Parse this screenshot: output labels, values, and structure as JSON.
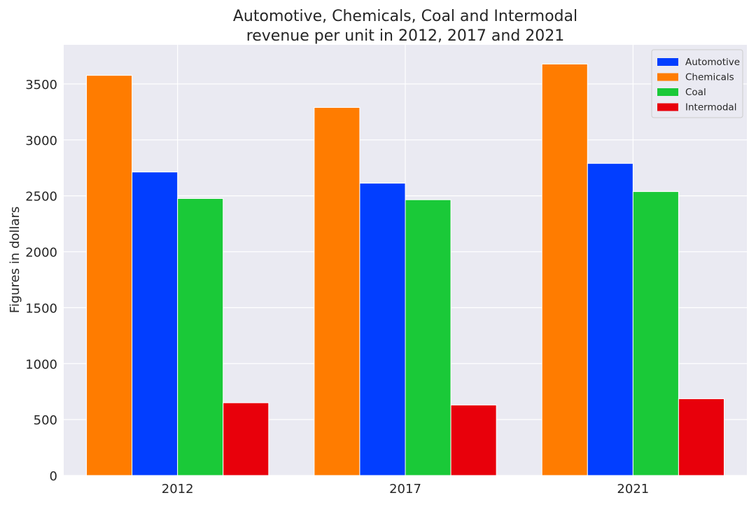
{
  "chart_data": {
    "type": "bar",
    "title_lines": [
      "Automotive, Chemicals, Coal and Intermodal",
      "revenue per unit in 2012, 2017 and 2021"
    ],
    "xlabel": "",
    "ylabel": "Figures in dollars",
    "categories": [
      "2012",
      "2017",
      "2021"
    ],
    "ylim": [
      0,
      3850
    ],
    "yticks": [
      0,
      500,
      1000,
      1500,
      2000,
      2500,
      3000,
      3500
    ],
    "grid": true,
    "legend_position": "top-right",
    "series": [
      {
        "name": "Chemicals",
        "color": "#ff7c00",
        "values": [
          3577,
          3290,
          3678
        ]
      },
      {
        "name": "Automotive",
        "color": "#023eff",
        "values": [
          2713,
          2613,
          2790
        ]
      },
      {
        "name": "Coal",
        "color": "#1ac938",
        "values": [
          2476,
          2465,
          2538
        ]
      },
      {
        "name": "Intermodal",
        "color": "#e8000b",
        "values": [
          650,
          630,
          686
        ]
      }
    ],
    "legend_order": [
      "Automotive",
      "Chemicals",
      "Coal",
      "Intermodal"
    ],
    "colors": {
      "plot_background": "#eaeaf2",
      "grid": "#ffffff",
      "text": "#262626"
    }
  }
}
